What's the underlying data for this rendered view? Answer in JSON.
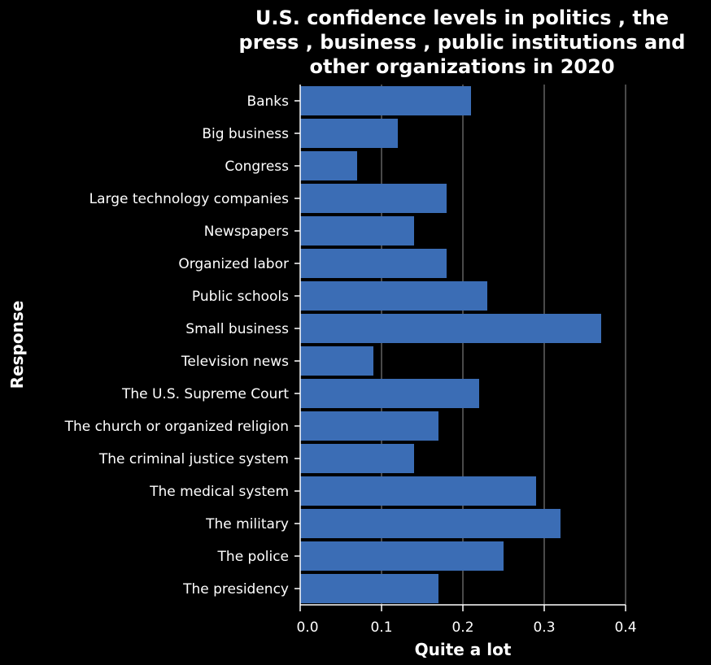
{
  "chart_data": {
    "type": "bar",
    "orientation": "horizontal",
    "title": "U.S. confidence levels in politics , the press , business , public institutions and other organizations in 2020",
    "title_lines": [
      "U.S. confidence levels in politics , the",
      "press , business , public institutions and",
      "other organizations in 2020"
    ],
    "xlabel": "Quite a lot",
    "ylabel": "Response",
    "xlim": [
      0,
      0.4
    ],
    "xticks": [
      "0.0",
      "0.1",
      "0.2",
      "0.3",
      "0.4"
    ],
    "grid": true,
    "bar_color": "#3b6db5",
    "categories": [
      "Banks",
      "Big business",
      "Congress",
      "Large technology companies",
      "Newspapers",
      "Organized labor",
      "Public schools",
      "Small business",
      "Television news",
      "The U.S. Supreme Court",
      "The church or organized religion",
      "The criminal justice system",
      "The medical system",
      "The military",
      "The police",
      "The presidency"
    ],
    "values": [
      0.21,
      0.12,
      0.07,
      0.18,
      0.14,
      0.18,
      0.23,
      0.37,
      0.09,
      0.22,
      0.17,
      0.14,
      0.29,
      0.32,
      0.25,
      0.17
    ]
  }
}
